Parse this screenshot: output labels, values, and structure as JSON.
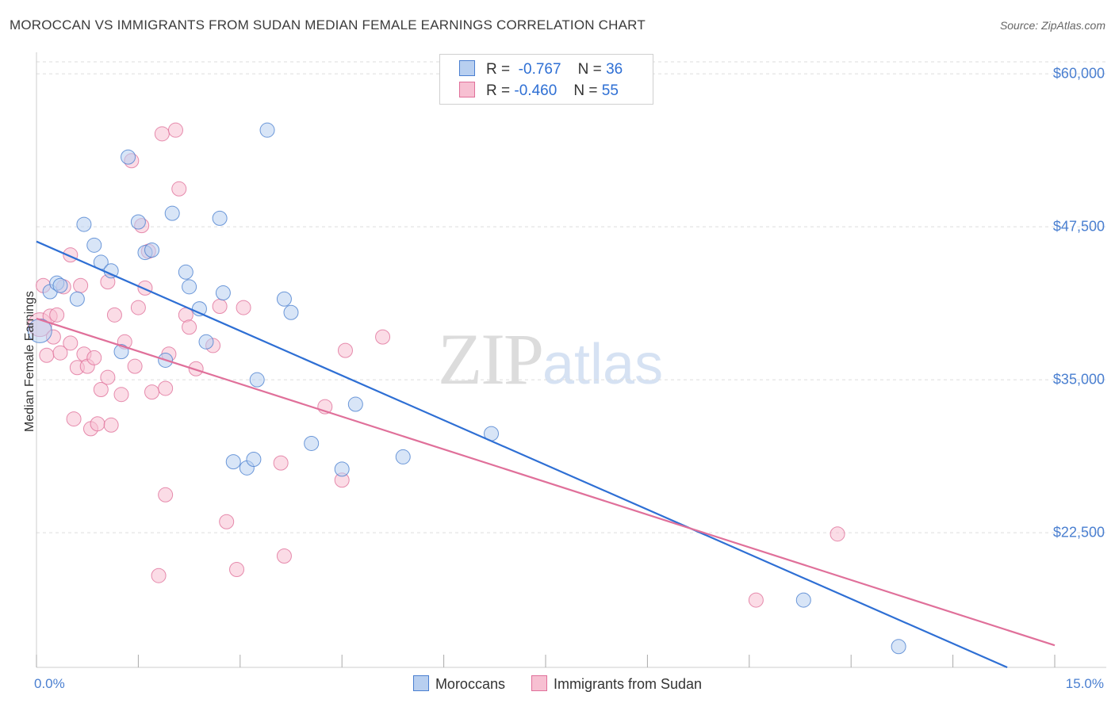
{
  "title": "MOROCCAN VS IMMIGRANTS FROM SUDAN MEDIAN FEMALE EARNINGS CORRELATION CHART",
  "source": "Source: ZipAtlas.com",
  "watermark": {
    "zip": "ZIP",
    "atlas": "atlas"
  },
  "colors": {
    "blue": "#4a7fd0",
    "blue_fill": "#b8cff0",
    "pink": "#e0709a",
    "pink_fill": "#f7c0d2",
    "axis_text": "#4a7fd0"
  },
  "legend_top": [
    {
      "r_label": "R =",
      "r_value": "-0.767",
      "n_label": "N =",
      "n_value": "36"
    },
    {
      "r_label": "R =",
      "r_value": "-0.460",
      "n_label": "N =",
      "n_value": "55"
    }
  ],
  "legend_bottom": [
    "Moroccans",
    "Immigrants from Sudan"
  ],
  "chart_data": {
    "type": "scatter",
    "title": "MOROCCAN VS IMMIGRANTS FROM SUDAN MEDIAN FEMALE EARNINGS CORRELATION CHART",
    "xlabel": "",
    "ylabel": "Median Female Earnings",
    "xlim": [
      0,
      15
    ],
    "ylim": [
      11500,
      61500
    ],
    "x_tick_labels": [
      "0.0%",
      "15.0%"
    ],
    "y_ticks": [
      22500,
      35000,
      47500,
      60000
    ],
    "y_tick_labels": [
      "$22,500",
      "$35,000",
      "$47,500",
      "$60,000"
    ],
    "grid": "horizontal dashed",
    "legend": "top-center and bottom",
    "series": [
      {
        "name": "Moroccans",
        "r": -0.767,
        "n": 36,
        "trend": {
          "x": [
            0.0,
            14.3
          ],
          "y": [
            46300,
            11500
          ]
        },
        "points": [
          [
            0.05,
            39000
          ],
          [
            0.2,
            42200
          ],
          [
            0.3,
            42900
          ],
          [
            0.35,
            42700
          ],
          [
            0.6,
            41600
          ],
          [
            0.7,
            47700
          ],
          [
            0.85,
            46000
          ],
          [
            0.95,
            44600
          ],
          [
            1.1,
            43900
          ],
          [
            1.25,
            37300
          ],
          [
            1.35,
            53200
          ],
          [
            1.5,
            47900
          ],
          [
            1.6,
            45400
          ],
          [
            1.7,
            45600
          ],
          [
            1.9,
            36600
          ],
          [
            2.0,
            48600
          ],
          [
            2.2,
            43800
          ],
          [
            2.25,
            42600
          ],
          [
            2.4,
            40800
          ],
          [
            2.5,
            38100
          ],
          [
            2.7,
            48200
          ],
          [
            2.75,
            42100
          ],
          [
            2.9,
            28300
          ],
          [
            3.1,
            27800
          ],
          [
            3.2,
            28500
          ],
          [
            3.25,
            35000
          ],
          [
            3.4,
            55400
          ],
          [
            3.65,
            41600
          ],
          [
            3.75,
            40500
          ],
          [
            4.05,
            29800
          ],
          [
            4.5,
            27700
          ],
          [
            4.7,
            33000
          ],
          [
            5.4,
            28700
          ],
          [
            6.7,
            30600
          ],
          [
            11.3,
            17000
          ],
          [
            12.7,
            13200
          ]
        ]
      },
      {
        "name": "Immigrants from Sudan",
        "r": -0.46,
        "n": 55,
        "trend": {
          "x": [
            0.0,
            15.0
          ],
          "y": [
            40000,
            13300
          ]
        },
        "points": [
          [
            0.05,
            39500
          ],
          [
            0.1,
            42700
          ],
          [
            0.15,
            37000
          ],
          [
            0.2,
            40200
          ],
          [
            0.25,
            38500
          ],
          [
            0.3,
            40300
          ],
          [
            0.35,
            37200
          ],
          [
            0.4,
            42600
          ],
          [
            0.5,
            38000
          ],
          [
            0.5,
            45200
          ],
          [
            0.55,
            31800
          ],
          [
            0.6,
            36000
          ],
          [
            0.65,
            42700
          ],
          [
            0.7,
            37100
          ],
          [
            0.75,
            36100
          ],
          [
            0.8,
            31000
          ],
          [
            0.85,
            36800
          ],
          [
            0.9,
            31400
          ],
          [
            0.95,
            34200
          ],
          [
            1.05,
            43000
          ],
          [
            1.05,
            35200
          ],
          [
            1.1,
            31300
          ],
          [
            1.15,
            40300
          ],
          [
            1.25,
            33800
          ],
          [
            1.3,
            38100
          ],
          [
            1.4,
            52900
          ],
          [
            1.45,
            36100
          ],
          [
            1.5,
            40900
          ],
          [
            1.55,
            47600
          ],
          [
            1.6,
            42500
          ],
          [
            1.65,
            45500
          ],
          [
            1.7,
            34000
          ],
          [
            1.8,
            19000
          ],
          [
            1.85,
            55100
          ],
          [
            1.9,
            25600
          ],
          [
            1.9,
            34300
          ],
          [
            1.95,
            37100
          ],
          [
            2.05,
            55400
          ],
          [
            2.1,
            50600
          ],
          [
            2.2,
            40300
          ],
          [
            2.25,
            39300
          ],
          [
            2.35,
            35900
          ],
          [
            2.6,
            37800
          ],
          [
            2.7,
            41000
          ],
          [
            2.8,
            23400
          ],
          [
            2.95,
            19500
          ],
          [
            3.05,
            40900
          ],
          [
            3.6,
            28200
          ],
          [
            3.65,
            20600
          ],
          [
            4.25,
            32800
          ],
          [
            4.5,
            26800
          ],
          [
            4.55,
            37400
          ],
          [
            5.1,
            38500
          ],
          [
            10.6,
            17000
          ],
          [
            11.8,
            22400
          ]
        ]
      }
    ]
  }
}
